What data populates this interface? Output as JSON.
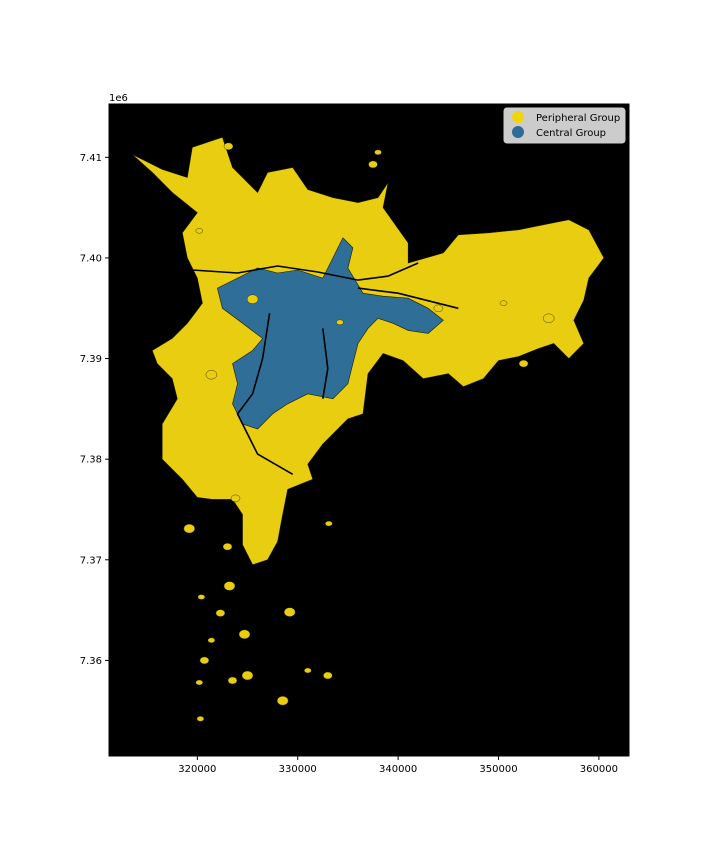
{
  "chart_data": {
    "type": "choropleth-map",
    "title": "",
    "xlabel": "",
    "ylabel": "",
    "y_offset_label": "1e6",
    "xlim": [
      311200,
      363000
    ],
    "ylim": [
      7350500,
      7415300
    ],
    "x_ticks": [
      320000,
      330000,
      340000,
      350000,
      360000
    ],
    "x_tick_labels": [
      "320000",
      "330000",
      "340000",
      "350000",
      "360000"
    ],
    "y_ticks": [
      7.36,
      7.37,
      7.38,
      7.39,
      7.4,
      7.41
    ],
    "y_tick_labels": [
      "7.36",
      "7.37",
      "7.38",
      "7.39",
      "7.40",
      "7.41"
    ],
    "background_color": "#000000",
    "grid": false,
    "legend": {
      "placement": "top-right",
      "entries": [
        {
          "label": "Peripheral Group",
          "color": "#f2d40a"
        },
        {
          "label": "Central Group",
          "color": "#2e6b96"
        }
      ]
    },
    "regions": [
      {
        "name": "Peripheral Group",
        "color": "#e8cd10",
        "outline": [
          [
            313500,
            7410300
          ],
          [
            316500,
            7408800
          ],
          [
            319000,
            7408000
          ],
          [
            319500,
            7411000
          ],
          [
            322500,
            7412000
          ],
          [
            323500,
            7409000
          ],
          [
            326000,
            7406500
          ],
          [
            327000,
            7408500
          ],
          [
            329500,
            7409000
          ],
          [
            331000,
            7406800
          ],
          [
            333500,
            7406000
          ],
          [
            336000,
            7405500
          ],
          [
            338000,
            7406000
          ],
          [
            339000,
            7407500
          ],
          [
            338500,
            7405000
          ],
          [
            341000,
            7401500
          ],
          [
            341000,
            7399500
          ],
          [
            344500,
            7400500
          ],
          [
            346000,
            7402300
          ],
          [
            349000,
            7402500
          ],
          [
            352000,
            7402800
          ],
          [
            354500,
            7403300
          ],
          [
            357000,
            7403800
          ],
          [
            359000,
            7402800
          ],
          [
            360500,
            7400000
          ],
          [
            359000,
            7398000
          ],
          [
            358500,
            7395800
          ],
          [
            357500,
            7393800
          ],
          [
            358500,
            7391500
          ],
          [
            357000,
            7390000
          ],
          [
            355500,
            7391500
          ],
          [
            354000,
            7391000
          ],
          [
            352000,
            7390200
          ],
          [
            350000,
            7389800
          ],
          [
            348500,
            7388000
          ],
          [
            346500,
            7387200
          ],
          [
            345000,
            7388500
          ],
          [
            342500,
            7388000
          ],
          [
            340500,
            7389800
          ],
          [
            338500,
            7390500
          ],
          [
            337000,
            7388500
          ],
          [
            336500,
            7384500
          ],
          [
            335000,
            7384000
          ],
          [
            332500,
            7381500
          ],
          [
            331000,
            7379500
          ],
          [
            331500,
            7378000
          ],
          [
            329000,
            7377000
          ],
          [
            328500,
            7374500
          ],
          [
            328000,
            7371800
          ],
          [
            327000,
            7370000
          ],
          [
            325500,
            7369500
          ],
          [
            324500,
            7371500
          ],
          [
            324500,
            7374500
          ],
          [
            323500,
            7376000
          ],
          [
            321500,
            7376000
          ],
          [
            320000,
            7376200
          ],
          [
            318500,
            7378000
          ],
          [
            316500,
            7380000
          ],
          [
            316500,
            7383500
          ],
          [
            318000,
            7386000
          ],
          [
            317500,
            7388000
          ],
          [
            316000,
            7389500
          ],
          [
            315500,
            7390800
          ],
          [
            317500,
            7392000
          ],
          [
            319000,
            7393500
          ],
          [
            320500,
            7395500
          ],
          [
            320000,
            7398000
          ],
          [
            319000,
            7400000
          ],
          [
            318500,
            7402500
          ],
          [
            320000,
            7404500
          ],
          [
            317500,
            7406500
          ],
          [
            315500,
            7408500
          ]
        ]
      },
      {
        "name": "Central Group",
        "color": "#2f6e96",
        "outline": [
          [
            322000,
            7397000
          ],
          [
            324000,
            7398000
          ],
          [
            326000,
            7399000
          ],
          [
            328000,
            7398500
          ],
          [
            330000,
            7398800
          ],
          [
            332500,
            7398000
          ],
          [
            333500,
            7400000
          ],
          [
            334500,
            7402000
          ],
          [
            335500,
            7401000
          ],
          [
            335000,
            7399000
          ],
          [
            336500,
            7396500
          ],
          [
            338500,
            7396200
          ],
          [
            341000,
            7396000
          ],
          [
            343000,
            7395000
          ],
          [
            344500,
            7393800
          ],
          [
            343000,
            7392500
          ],
          [
            341000,
            7392800
          ],
          [
            339500,
            7393500
          ],
          [
            338000,
            7394000
          ],
          [
            337000,
            7393000
          ],
          [
            336000,
            7391500
          ],
          [
            335500,
            7389500
          ],
          [
            335000,
            7387500
          ],
          [
            333500,
            7386000
          ],
          [
            331000,
            7386500
          ],
          [
            329000,
            7385500
          ],
          [
            327500,
            7384500
          ],
          [
            326000,
            7383000
          ],
          [
            324500,
            7383500
          ],
          [
            323500,
            7385500
          ],
          [
            324000,
            7387500
          ],
          [
            323500,
            7389500
          ],
          [
            325500,
            7390800
          ],
          [
            326500,
            7392000
          ],
          [
            324500,
            7393500
          ],
          [
            322500,
            7395000
          ]
        ]
      }
    ],
    "small_patches": [
      [
        320200,
        7402700
      ],
      [
        323100,
        7411100
      ],
      [
        321400,
        7388400
      ],
      [
        333100,
        7373600
      ],
      [
        323000,
        7371300
      ],
      [
        323200,
        7367400
      ],
      [
        320400,
        7366300
      ],
      [
        322300,
        7364700
      ],
      [
        324700,
        7362600
      ],
      [
        321400,
        7362000
      ],
      [
        320700,
        7360000
      ],
      [
        325000,
        7358500
      ],
      [
        320200,
        7357800
      ],
      [
        323500,
        7358000
      ],
      [
        329200,
        7364800
      ],
      [
        331000,
        7359000
      ],
      [
        333000,
        7358500
      ],
      [
        328500,
        7356000
      ],
      [
        320300,
        7354200
      ],
      [
        323800,
        7376100
      ],
      [
        319200,
        7373100
      ],
      [
        338000,
        7410500
      ],
      [
        337500,
        7409300
      ],
      [
        325500,
        7395900
      ],
      [
        334200,
        7393600
      ],
      [
        344000,
        7395000
      ],
      [
        355000,
        7394000
      ],
      [
        350500,
        7395500
      ],
      [
        352500,
        7389500
      ]
    ]
  }
}
